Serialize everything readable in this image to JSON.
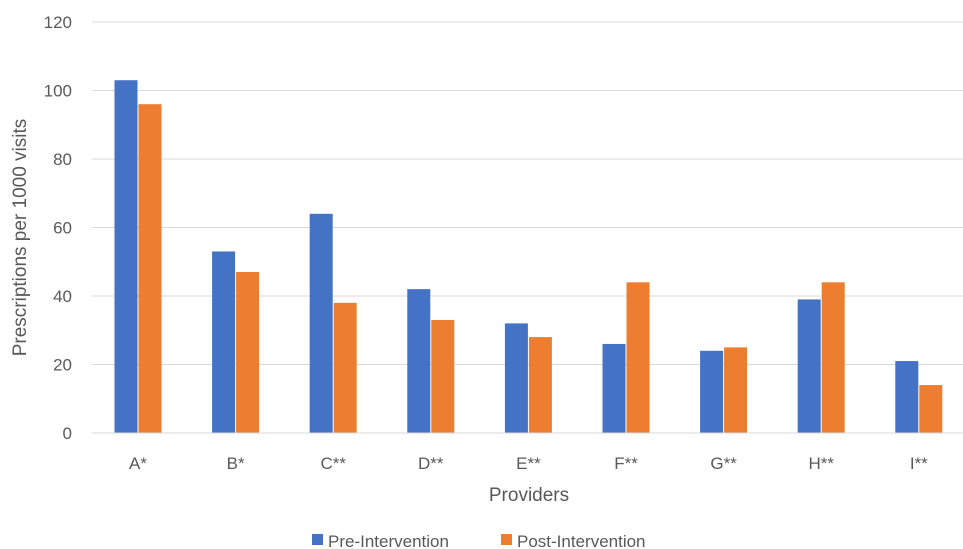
{
  "chart_data": {
    "type": "bar",
    "title": "",
    "xlabel": "Providers",
    "ylabel": "Prescriptions per 1000 visits",
    "categories": [
      "A*",
      "B*",
      "C**",
      "D**",
      "E**",
      "F**",
      "G**",
      "H**",
      "I**"
    ],
    "series": [
      {
        "name": "Pre-Intervention",
        "color": "#4472c4",
        "values": [
          103,
          53,
          64,
          42,
          32,
          26,
          24,
          39,
          21
        ]
      },
      {
        "name": "Post-Intervention",
        "color": "#ed7d31",
        "values": [
          96,
          47,
          38,
          33,
          28,
          44,
          25,
          44,
          14
        ]
      }
    ],
    "ylim": [
      0,
      120
    ],
    "yticks": [
      0,
      20,
      40,
      60,
      80,
      100,
      120
    ],
    "grid": true,
    "legend_position": "bottom"
  }
}
